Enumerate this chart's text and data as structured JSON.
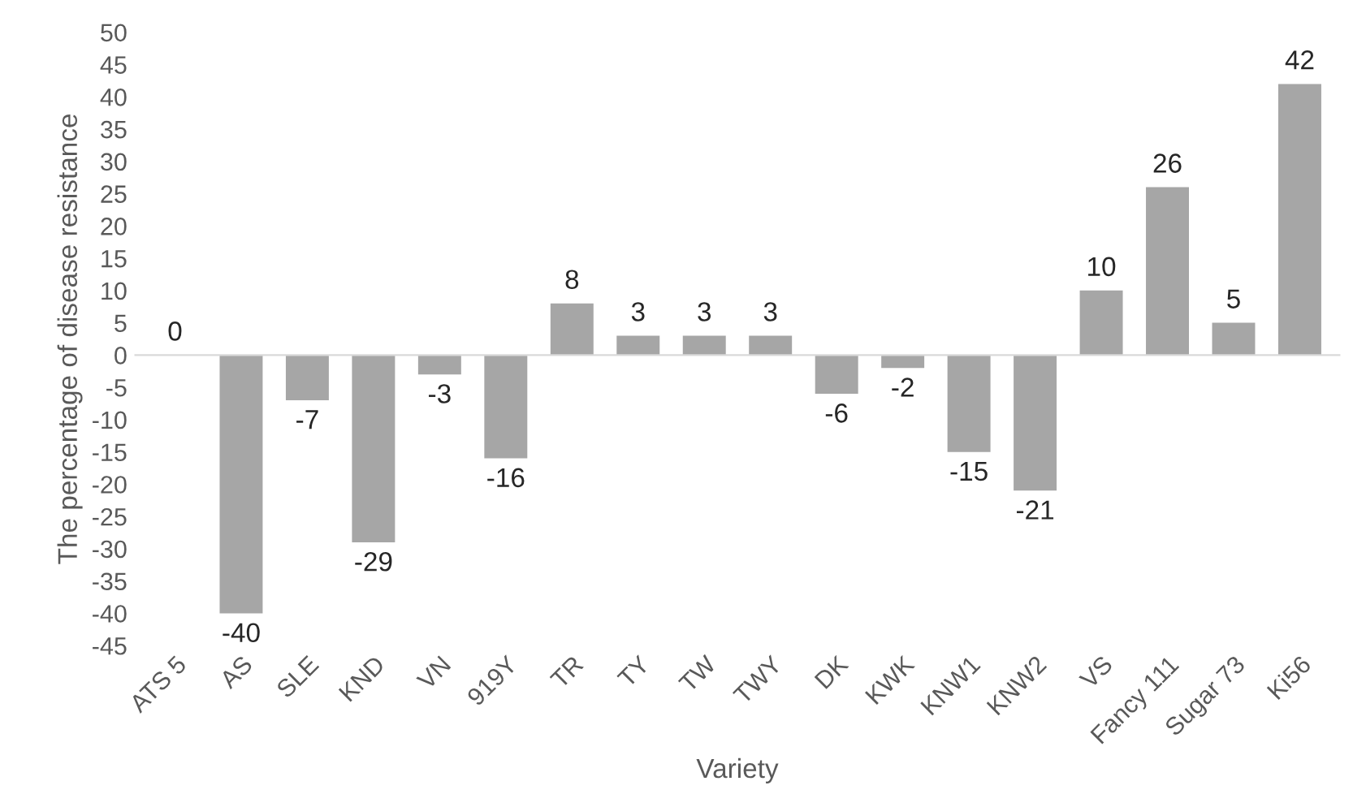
{
  "chart_data": {
    "type": "bar",
    "xlabel": "Variety",
    "ylabel": "The percentage of disease resistance",
    "categories": [
      "ATS 5",
      "AS",
      "SLE",
      "KND",
      "VN",
      "919Y",
      "TR",
      "TY",
      "TW",
      "TWY",
      "DK",
      "KWK",
      "KNW1",
      "KNW2",
      "VS",
      "Fancy 111",
      "Sugar 73",
      "Ki56"
    ],
    "values": [
      0,
      -40,
      -7,
      -29,
      -3,
      -16,
      8,
      3,
      3,
      3,
      -6,
      -2,
      -15,
      -21,
      10,
      26,
      5,
      42
    ],
    "color": "#a6a6a6",
    "ylim": [
      -45,
      50
    ],
    "yticks": [
      -45,
      -40,
      -35,
      -30,
      -25,
      -20,
      -15,
      -10,
      -5,
      0,
      5,
      10,
      15,
      20,
      25,
      30,
      35,
      40,
      45,
      50
    ],
    "data_labels": true,
    "legend": false
  }
}
